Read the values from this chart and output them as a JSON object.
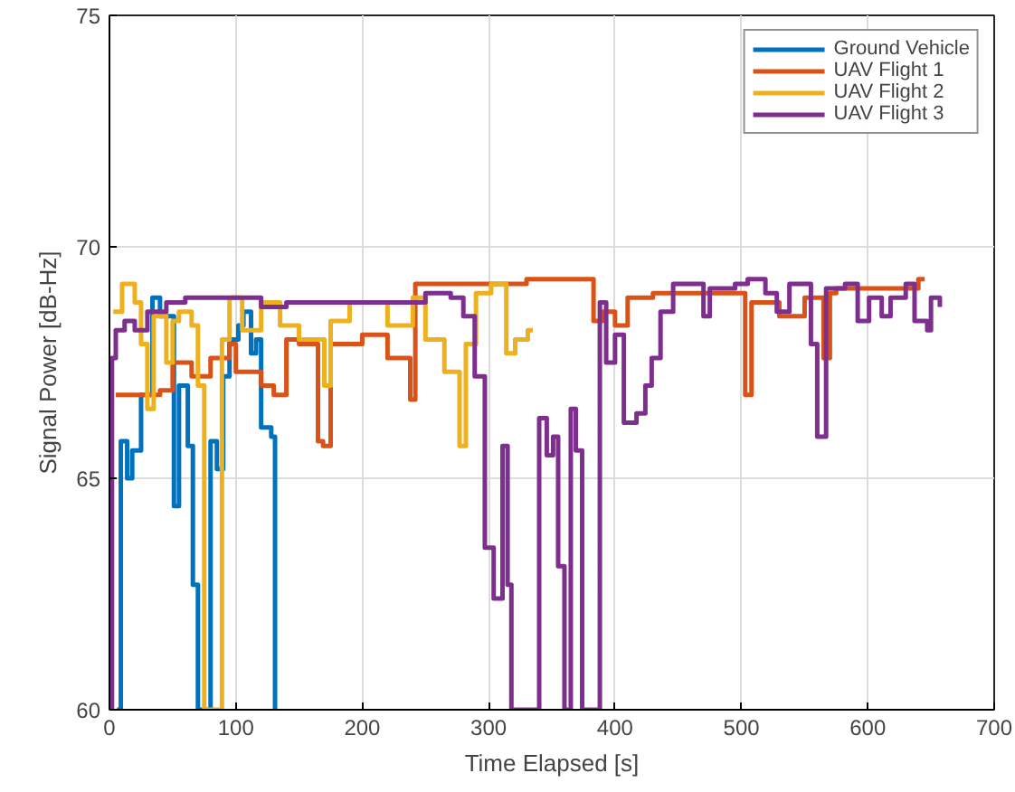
{
  "chart_data": {
    "type": "step",
    "xlabel": "Time Elapsed [s]",
    "ylabel": "Signal Power [dB-Hz]",
    "xlim": [
      0,
      700
    ],
    "ylim": [
      60,
      75
    ],
    "xticks": [
      0,
      100,
      200,
      300,
      400,
      500,
      600,
      700
    ],
    "yticks": [
      60,
      65,
      70,
      75
    ],
    "grid": true,
    "legend": "top right",
    "line_style": "solid",
    "series": [
      {
        "name": "Ground Vehicle",
        "color": "#0072bd",
        "x": [
          6,
          9,
          14,
          18,
          25,
          34,
          40,
          51,
          55,
          62,
          66,
          70,
          80,
          85,
          90,
          95,
          102,
          106,
          112,
          116,
          120,
          128,
          131
        ],
        "values": [
          60,
          65.8,
          65.0,
          65.6,
          66.8,
          68.9,
          68.5,
          64.4,
          67.0,
          65.7,
          62.7,
          60,
          65.8,
          65.2,
          67.2,
          68.0,
          68.3,
          68.6,
          67.7,
          68.0,
          66.1,
          65.9,
          60
        ]
      },
      {
        "name": "UAV Flight 1",
        "color": "#d95319",
        "x": [
          5,
          40,
          50,
          65,
          80,
          95,
          100,
          120,
          130,
          140,
          150,
          165,
          169,
          175,
          200,
          220,
          238,
          242,
          330,
          383,
          390,
          400,
          410,
          430,
          490,
          503,
          508,
          530,
          550,
          565,
          570,
          575,
          640,
          645
        ],
        "values": [
          66.8,
          66.9,
          67.5,
          67.2,
          67.6,
          67.9,
          67.3,
          67.0,
          66.8,
          68.0,
          67.9,
          65.8,
          65.7,
          67.9,
          68.1,
          67.6,
          66.7,
          69.2,
          69.3,
          68.4,
          68.6,
          68.3,
          68.9,
          69.0,
          69.0,
          66.8,
          68.8,
          68.5,
          68.9,
          67.6,
          69.0,
          69.1,
          69.3,
          69.3
        ]
      },
      {
        "name": "UAV Flight 2",
        "color": "#edb120",
        "x": [
          3,
          10,
          20,
          25,
          30,
          35,
          45,
          50,
          55,
          65,
          70,
          75,
          85,
          89,
          95,
          105,
          120,
          135,
          150,
          170,
          175,
          190,
          220,
          240,
          250,
          265,
          277,
          282,
          290,
          302,
          314,
          321,
          331,
          335
        ],
        "values": [
          68.6,
          69.2,
          68.8,
          67.9,
          66.5,
          68.5,
          67.5,
          68.4,
          68.6,
          68.3,
          67.0,
          60,
          60,
          68.0,
          68.9,
          68.2,
          68.8,
          68.3,
          68.0,
          67.0,
          68.4,
          68.8,
          68.3,
          68.9,
          68.0,
          67.3,
          65.7,
          67.9,
          69.0,
          69.2,
          67.7,
          68.0,
          68.2,
          68.2
        ]
      },
      {
        "name": "UAV Flight 3",
        "color": "#7e2f8e",
        "x": [
          0,
          2,
          5,
          12,
          20,
          30,
          45,
          60,
          100,
          120,
          140,
          250,
          270,
          280,
          289,
          297,
          304,
          311,
          315,
          318,
          340,
          346,
          351,
          355,
          360,
          365,
          369,
          374,
          388,
          393,
          400,
          407,
          417,
          424,
          429,
          436,
          446,
          470,
          475,
          495,
          505,
          519,
          528,
          538,
          555,
          560,
          567,
          582,
          592,
          601,
          611,
          618,
          630,
          637,
          647,
          650,
          657
        ],
        "values": [
          60,
          67.6,
          68.2,
          68.4,
          68.2,
          68.6,
          68.8,
          68.9,
          68.9,
          68.7,
          68.8,
          69.0,
          68.9,
          68.5,
          67.2,
          63.5,
          62.4,
          65.7,
          62.7,
          60,
          66.3,
          65.5,
          65.9,
          63.1,
          60,
          66.5,
          65.6,
          60,
          68.8,
          67.5,
          68.1,
          66.2,
          66.4,
          67.0,
          67.6,
          68.6,
          69.2,
          68.5,
          69.1,
          69.2,
          69.3,
          69.0,
          68.6,
          69.2,
          67.9,
          65.9,
          69.1,
          69.2,
          68.4,
          68.9,
          68.5,
          68.9,
          69.2,
          68.4,
          68.2,
          68.9,
          68.7
        ]
      }
    ]
  }
}
